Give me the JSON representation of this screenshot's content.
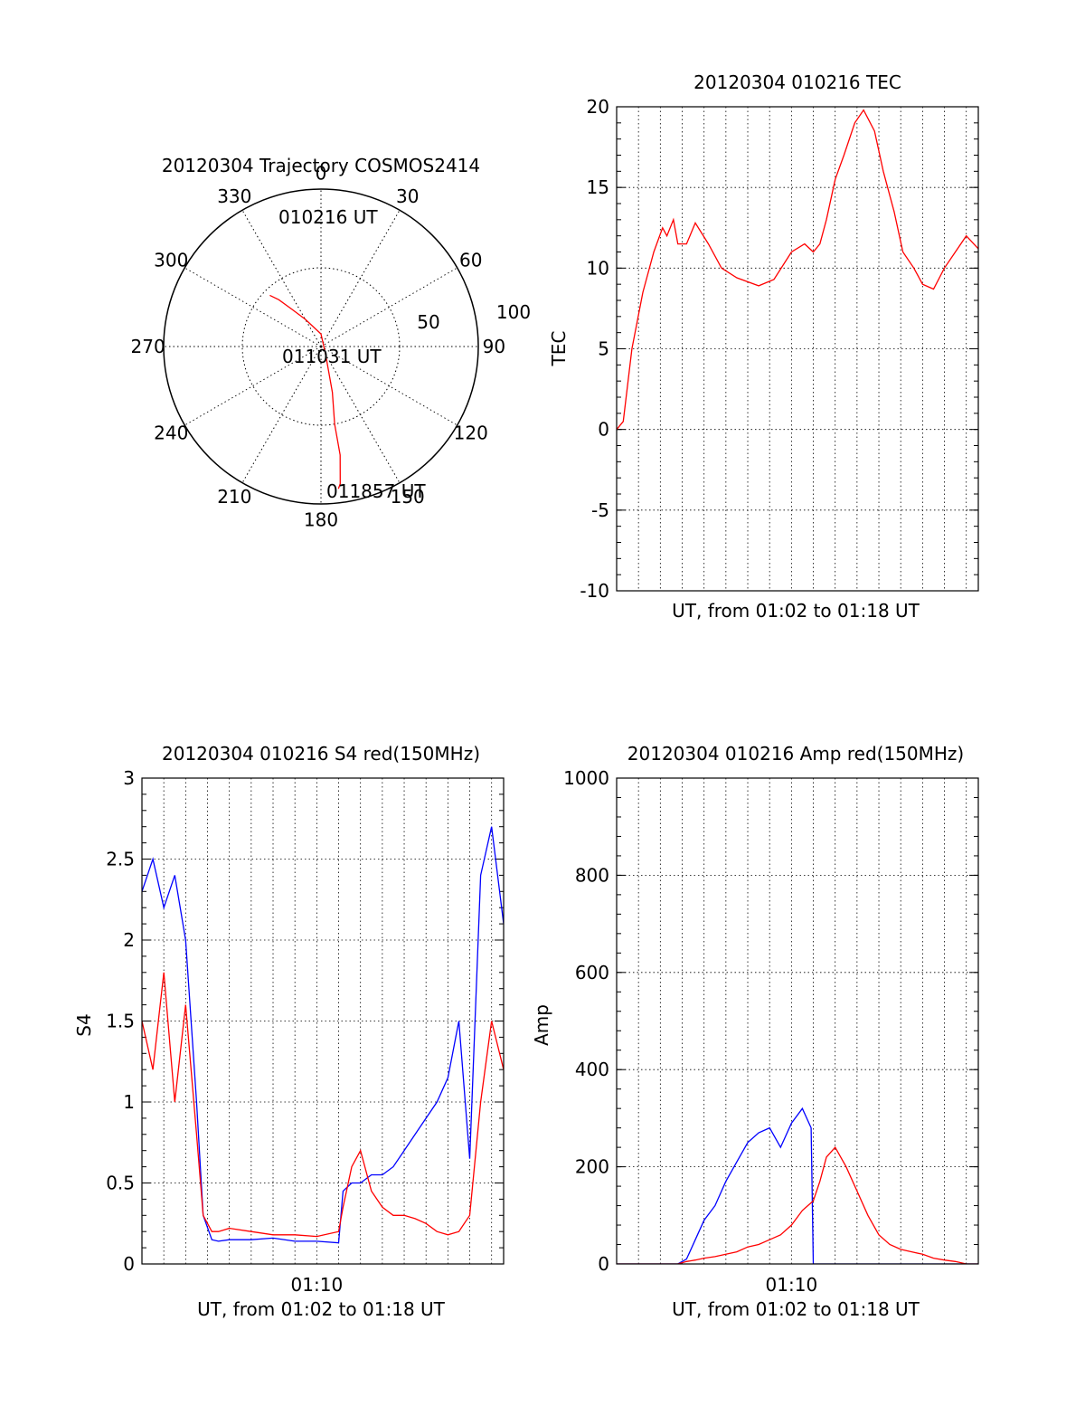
{
  "chart_data": [
    {
      "type": "polar",
      "title": "20120304 Trajectory COSMOS2414",
      "azimuth_labels": [
        "0",
        "30",
        "60",
        "90",
        "120",
        "150",
        "180",
        "210",
        "240",
        "270",
        "300",
        "330"
      ],
      "azimuths": [
        0,
        30,
        60,
        90,
        120,
        150,
        180,
        210,
        240,
        270,
        300,
        330
      ],
      "radial_labels": [
        "50",
        "100"
      ],
      "radial_values": [
        50,
        100
      ],
      "rmax": 100,
      "annotations": [
        "010216 UT",
        "011031 UT",
        "011857 UT"
      ],
      "trajectory": {
        "color": "#ff0000",
        "points": [
          [
            315,
            46
          ],
          [
            318,
            40
          ],
          [
            322,
            30
          ],
          [
            330,
            20
          ],
          [
            360,
            8
          ],
          [
            150,
            6
          ],
          [
            166,
            30
          ],
          [
            170,
            50
          ],
          [
            170,
            70
          ],
          [
            172,
            88
          ],
          [
            173,
            91
          ]
        ]
      }
    },
    {
      "type": "line",
      "title": "20120304 010216 TEC",
      "xlabel": "UT, from 01:02 to 01:18 UT",
      "ylabel": "TEC",
      "xlim": [
        0,
        16.55
      ],
      "ylim": [
        -10,
        20
      ],
      "yticks": [
        "20",
        "15",
        "10",
        "5",
        "0",
        "-5",
        "-10"
      ],
      "ytick_values": [
        20,
        15,
        10,
        5,
        0,
        -5,
        -10
      ],
      "grid": true,
      "series": [
        {
          "color": "#ff0000",
          "x": [
            0,
            0.3,
            0.7,
            1.2,
            1.7,
            2.1,
            2.3,
            2.6,
            2.8,
            3.2,
            3.6,
            4.2,
            4.8,
            5.5,
            6.5,
            7.2,
            8.0,
            8.6,
            9.0,
            9.3,
            9.6,
            10.0,
            10.4,
            10.9,
            11.3,
            11.8,
            12.2,
            12.7,
            13.1,
            13.6,
            14.0,
            14.5,
            15.0,
            15.5,
            16.0,
            16.55
          ],
          "y": [
            0,
            0.5,
            5,
            8.5,
            11,
            12.5,
            12,
            13,
            11.5,
            11.5,
            12.8,
            11.5,
            10,
            9.4,
            8.9,
            9.3,
            11,
            11.5,
            11,
            11.5,
            13,
            15.5,
            17,
            19,
            19.8,
            18.5,
            16,
            13.5,
            11,
            10,
            9,
            8.7,
            10,
            11,
            12,
            11.2
          ]
        }
      ]
    },
    {
      "type": "line",
      "title": "20120304 010216 S4 red(150MHz)",
      "xlabel": "UT, from 01:02 to 01:18 UT",
      "ylabel": "S4",
      "xlim": [
        0,
        16.55
      ],
      "ylim": [
        0,
        3
      ],
      "xticks": [
        "01:10"
      ],
      "xtick_values": [
        8.0
      ],
      "yticks": [
        "3",
        "2.5",
        "2",
        "1.5",
        "1",
        "0.5",
        "0"
      ],
      "ytick_values": [
        3,
        2.5,
        2,
        1.5,
        1,
        0.5,
        0
      ],
      "grid": true,
      "series": [
        {
          "color": "#0000ff",
          "x": [
            0,
            0.5,
            1.0,
            1.5,
            2.0,
            2.5,
            2.8,
            3.2,
            3.5,
            4.0,
            5.0,
            6.0,
            7.0,
            8.0,
            9.0,
            9.2,
            9.6,
            10.0,
            10.5,
            11.0,
            11.5,
            12.0,
            12.5,
            13.0,
            13.5,
            14.0,
            14.5,
            15.0,
            15.5,
            16.0,
            16.55
          ],
          "y": [
            2.3,
            2.5,
            2.2,
            2.4,
            2.0,
            1.0,
            0.3,
            0.15,
            0.14,
            0.15,
            0.15,
            0.16,
            0.14,
            0.14,
            0.13,
            0.45,
            0.5,
            0.5,
            0.55,
            0.55,
            0.6,
            0.7,
            0.8,
            0.9,
            1.0,
            1.15,
            1.5,
            0.65,
            2.4,
            2.7,
            2.1
          ]
        },
        {
          "color": "#ff0000",
          "x": [
            0,
            0.5,
            1.0,
            1.5,
            2.0,
            2.5,
            2.8,
            3.2,
            3.5,
            4.0,
            5.0,
            6.0,
            7.0,
            8.0,
            9.0,
            9.2,
            9.6,
            10.0,
            10.5,
            11.0,
            11.5,
            12.0,
            12.5,
            13.0,
            13.5,
            14.0,
            14.5,
            15.0,
            15.5,
            16.0,
            16.55
          ],
          "y": [
            1.5,
            1.2,
            1.8,
            1.0,
            1.6,
            0.8,
            0.3,
            0.2,
            0.2,
            0.22,
            0.2,
            0.18,
            0.18,
            0.17,
            0.2,
            0.35,
            0.6,
            0.7,
            0.45,
            0.35,
            0.3,
            0.3,
            0.28,
            0.25,
            0.2,
            0.18,
            0.2,
            0.3,
            1.0,
            1.5,
            1.2
          ]
        }
      ]
    },
    {
      "type": "line",
      "title": "20120304 010216 Amp red(150MHz)",
      "xlabel": "UT, from 01:02 to 01:18 UT",
      "ylabel": "Amp",
      "xlim": [
        0,
        16.55
      ],
      "ylim": [
        0,
        1000
      ],
      "xticks": [
        "01:10"
      ],
      "xtick_values": [
        8.0
      ],
      "yticks": [
        "1000",
        "800",
        "600",
        "400",
        "200",
        "0"
      ],
      "ytick_values": [
        1000,
        800,
        600,
        400,
        200,
        0
      ],
      "grid": true,
      "series": [
        {
          "color": "#0000ff",
          "x": [
            0,
            1.0,
            2.0,
            2.8,
            3.2,
            3.6,
            4.0,
            4.5,
            5.0,
            5.5,
            6.0,
            6.5,
            7.0,
            7.5,
            8.0,
            8.5,
            8.9,
            9.0,
            9.5,
            10.0,
            11.0,
            12.0,
            13.0,
            14.0,
            15.0,
            16.0,
            16.55
          ],
          "y": [
            0,
            0,
            0,
            0,
            10,
            50,
            90,
            120,
            170,
            210,
            250,
            270,
            280,
            240,
            290,
            320,
            280,
            0,
            0,
            0,
            0,
            0,
            0,
            0,
            0,
            0,
            0
          ]
        },
        {
          "color": "#ff0000",
          "x": [
            0,
            1.0,
            2.0,
            2.8,
            3.2,
            3.6,
            4.0,
            4.5,
            5.0,
            5.5,
            6.0,
            6.5,
            7.0,
            7.5,
            8.0,
            8.5,
            9.0,
            9.3,
            9.6,
            10.0,
            10.5,
            11.0,
            11.5,
            12.0,
            12.5,
            13.0,
            13.5,
            14.0,
            14.5,
            15.0,
            15.5,
            16.0,
            16.55
          ],
          "y": [
            0,
            0,
            0,
            0,
            5,
            8,
            12,
            15,
            20,
            25,
            35,
            40,
            50,
            60,
            80,
            110,
            130,
            170,
            220,
            240,
            200,
            150,
            100,
            60,
            40,
            30,
            25,
            20,
            12,
            8,
            5,
            0,
            0
          ]
        }
      ]
    }
  ]
}
